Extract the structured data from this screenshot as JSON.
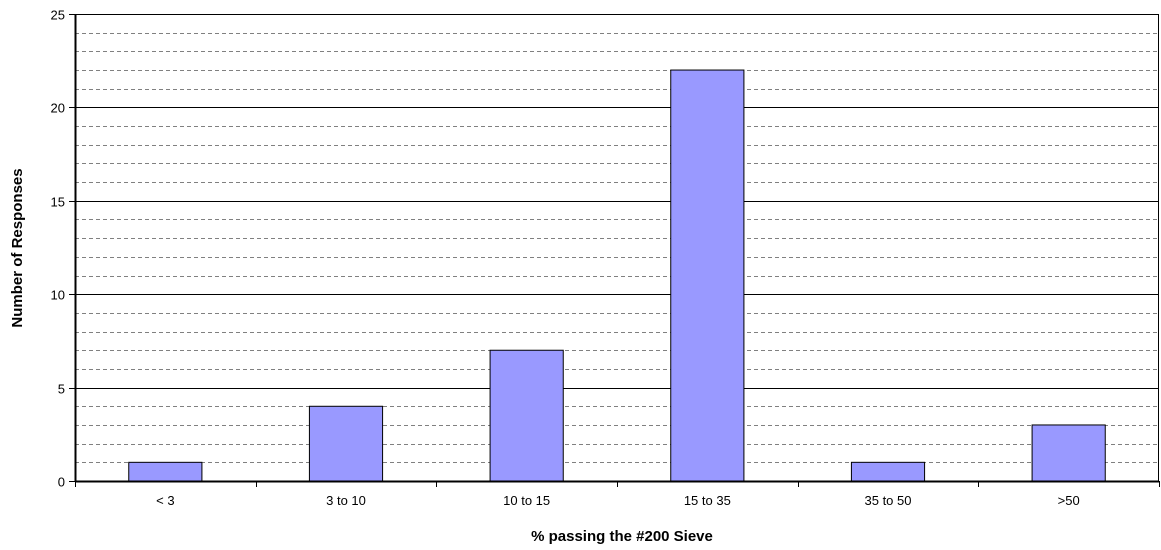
{
  "chart_data": {
    "type": "bar",
    "categories": [
      "< 3",
      "3 to 10",
      "10 to 15",
      "15 to 35",
      "35 to 50",
      ">50"
    ],
    "values": [
      1,
      4,
      7,
      22,
      1,
      3
    ],
    "title": "",
    "xlabel": "% passing the #200 Sieve",
    "ylabel": "Number of Responses",
    "ylim": [
      0,
      25
    ],
    "major_ticks": [
      0,
      5,
      10,
      15,
      20,
      25
    ],
    "minor_step": 1,
    "grid": true,
    "legend": "none",
    "bar_color": "#9999ff",
    "bar_stroke": "#000000"
  }
}
